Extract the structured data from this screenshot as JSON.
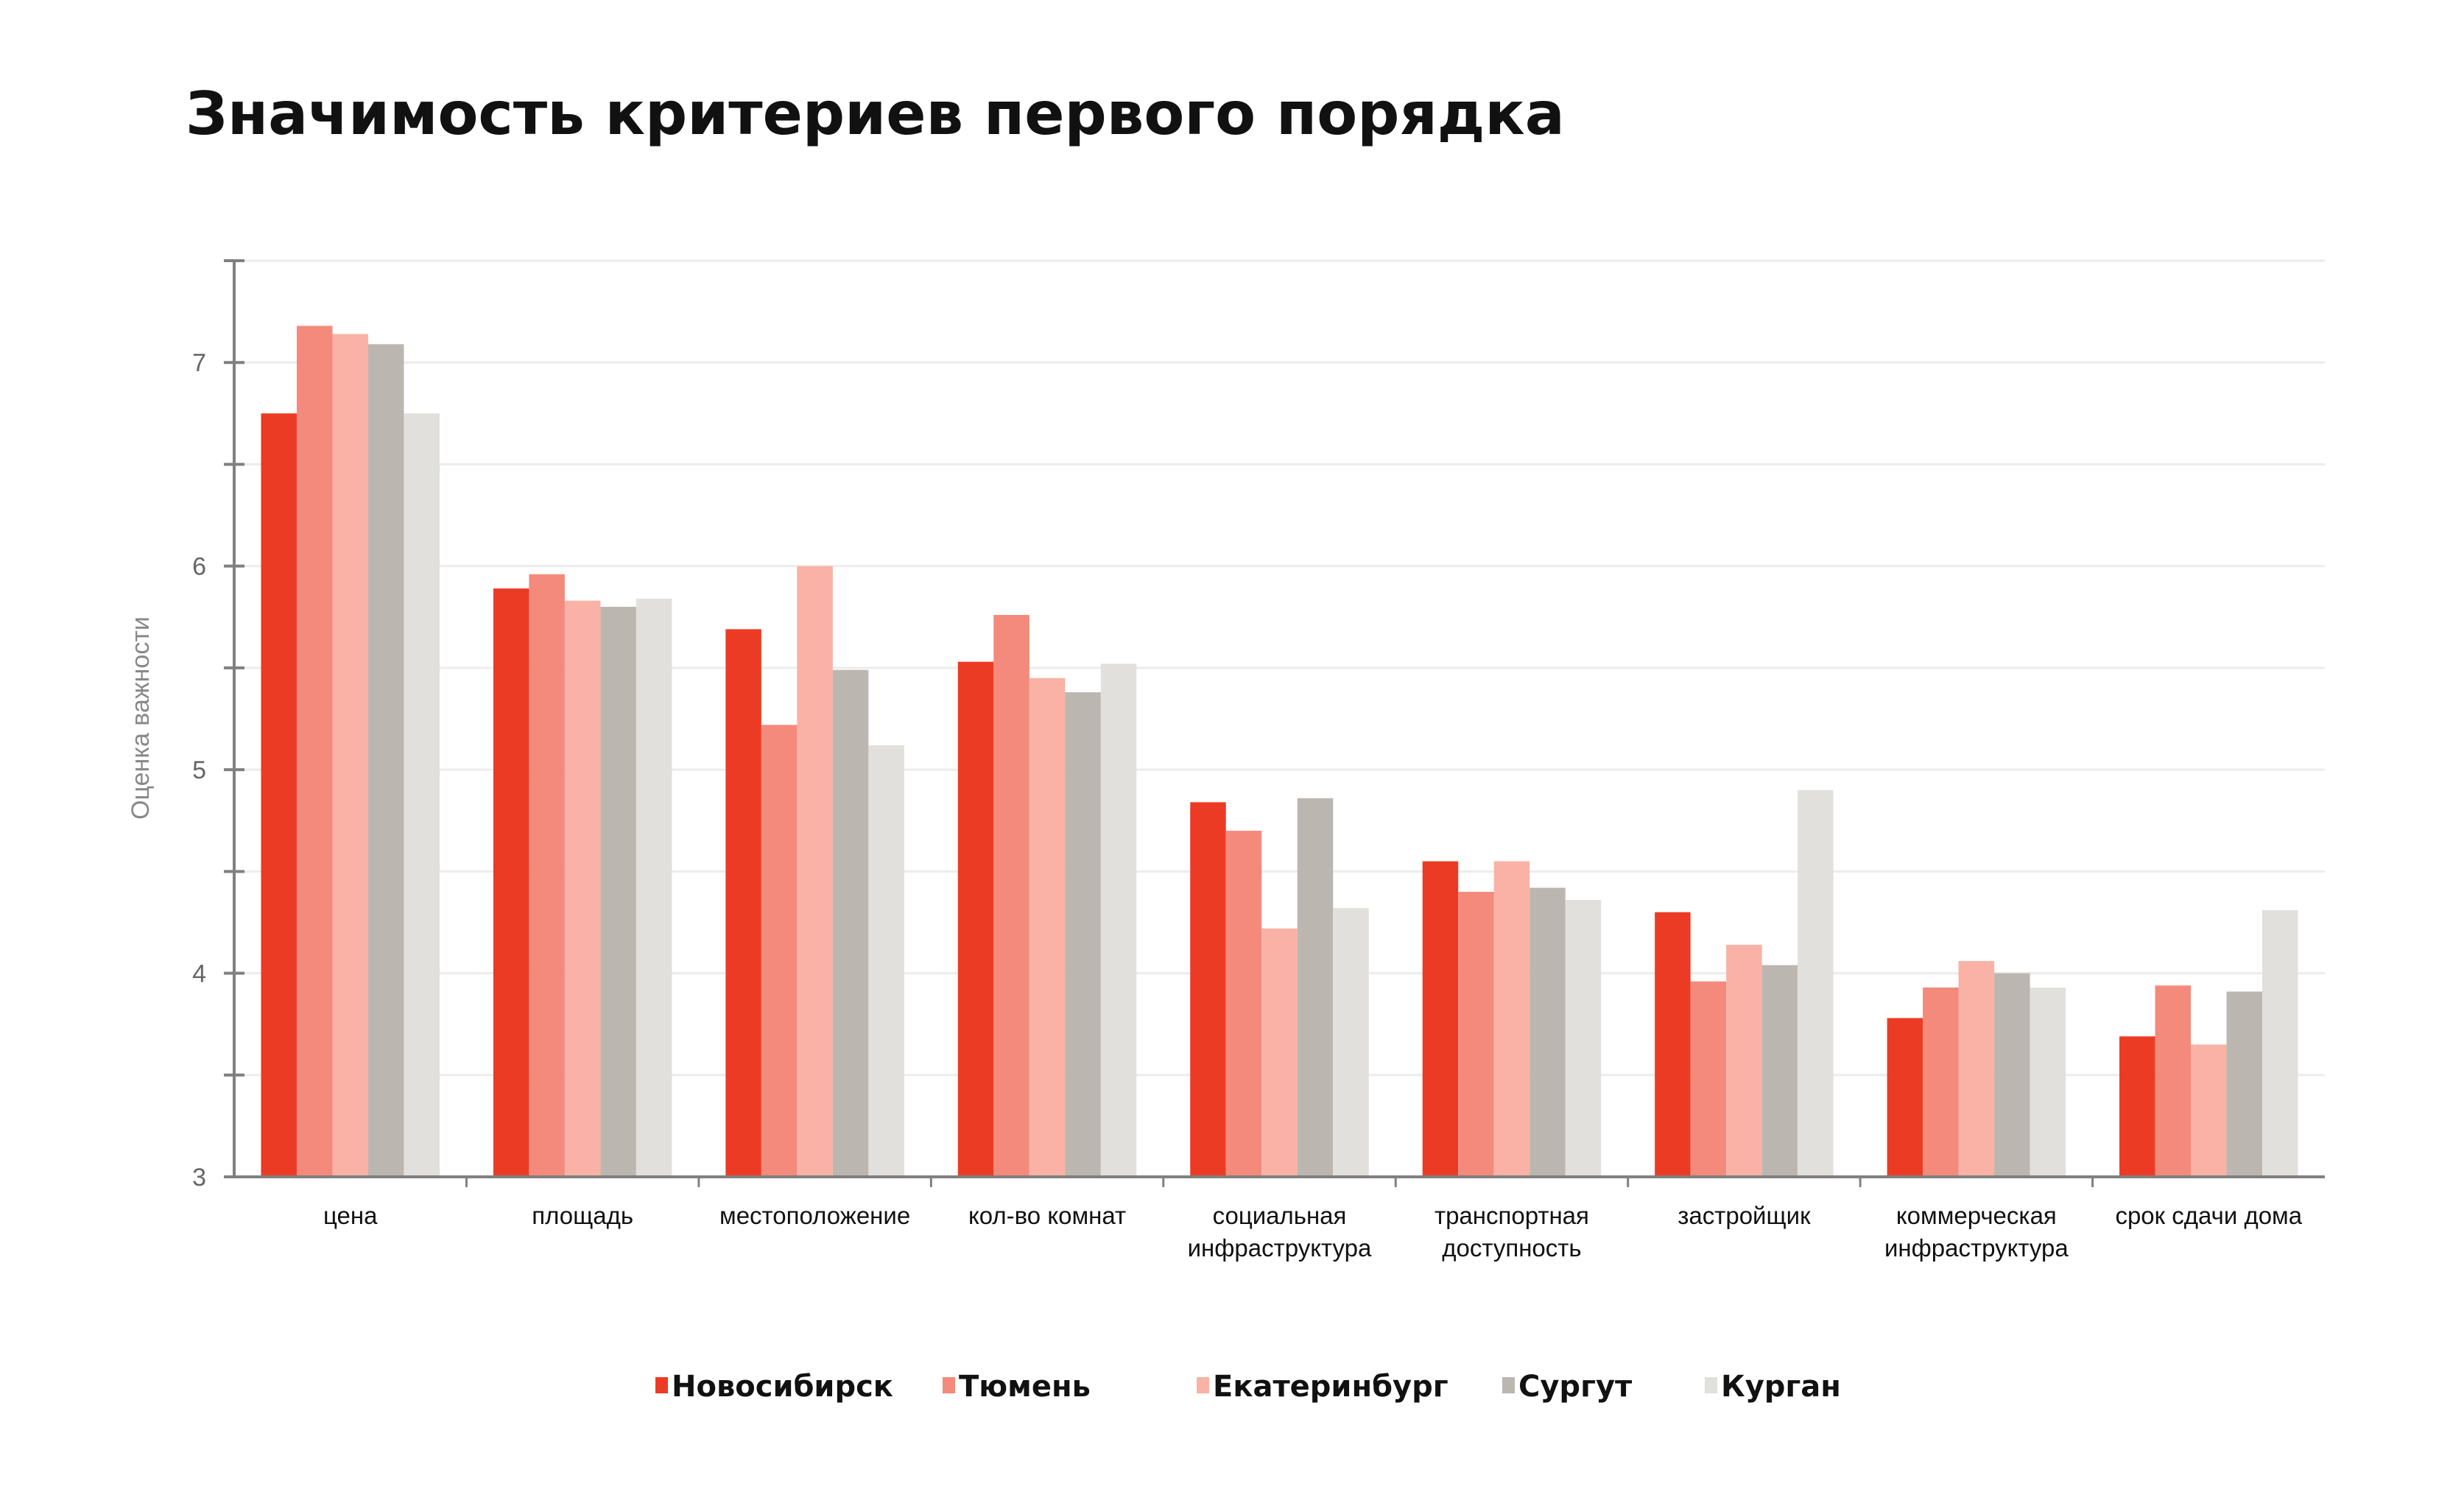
{
  "chart_data": {
    "type": "bar",
    "title": "Значимость критериев первого порядка",
    "ylabel": "Оценка важности",
    "xlabel": "",
    "ylim": [
      3,
      7.5
    ],
    "yticks": [
      3,
      4,
      5,
      6,
      7
    ],
    "grid": true,
    "legend_position": "bottom-center",
    "categories": [
      [
        "цена"
      ],
      [
        "площадь"
      ],
      [
        "местоположение"
      ],
      [
        "кол-во комнат"
      ],
      [
        "социальная",
        "инфраструктура"
      ],
      [
        "транспортная",
        "доступность"
      ],
      [
        "застройщик"
      ],
      [
        "коммерческая",
        "инфраструктура"
      ],
      [
        "срок сдачи дома"
      ]
    ],
    "series": [
      {
        "name": "Новосибирск",
        "color": "#ec3b25",
        "values": [
          6.75,
          5.89,
          5.69,
          5.53,
          4.84,
          4.55,
          4.3,
          3.78,
          3.69
        ]
      },
      {
        "name": "Тюмень",
        "color": "#f48a7b",
        "values": [
          7.18,
          5.96,
          5.22,
          5.76,
          4.7,
          4.4,
          3.96,
          3.93,
          3.94
        ]
      },
      {
        "name": "Екатеринбург",
        "color": "#f9b2a5",
        "values": [
          7.14,
          5.83,
          6.0,
          5.45,
          4.22,
          4.55,
          4.14,
          4.06,
          3.65
        ]
      },
      {
        "name": "Сургут",
        "color": "#bbb6b0",
        "values": [
          7.09,
          5.8,
          5.49,
          5.38,
          4.86,
          4.42,
          4.04,
          4.0,
          3.91
        ]
      },
      {
        "name": "Курган",
        "color": "#e2e0dd",
        "values": [
          6.75,
          5.84,
          5.12,
          5.52,
          4.32,
          4.36,
          4.9,
          3.93,
          4.31
        ]
      }
    ]
  }
}
